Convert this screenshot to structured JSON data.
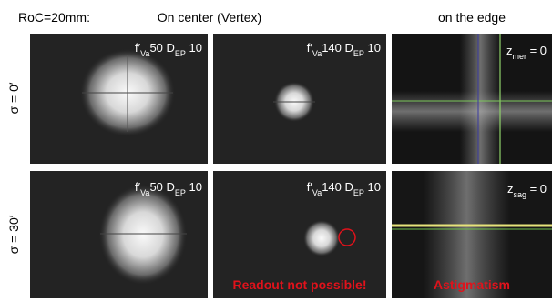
{
  "header": {
    "roc": "RoC=20mm:",
    "center": "On center (Vertex)",
    "edge": "on the edge"
  },
  "rows": [
    {
      "label": "σ = 0′",
      "panels": [
        {
          "label": [
            {
              "text": "f′"
            },
            {
              "text": "Va",
              "sub": true
            },
            {
              "text": "50 D"
            },
            {
              "text": "EP",
              "sub": true
            },
            {
              "text": " 10"
            }
          ]
        },
        {
          "label": [
            {
              "text": "f′"
            },
            {
              "text": "Va",
              "sub": true
            },
            {
              "text": "140 D"
            },
            {
              "text": "EP",
              "sub": true
            },
            {
              "text": " 10"
            }
          ]
        },
        {
          "label": [
            {
              "text": "z"
            },
            {
              "text": "mer",
              "sub": true
            },
            {
              "text": " = 0"
            }
          ]
        }
      ]
    },
    {
      "label": "σ = 30′",
      "panels": [
        {
          "label": [
            {
              "text": "f′"
            },
            {
              "text": "Va",
              "sub": true
            },
            {
              "text": "50 D"
            },
            {
              "text": "EP",
              "sub": true
            },
            {
              "text": " 10"
            }
          ]
        },
        {
          "label": [
            {
              "text": "f′"
            },
            {
              "text": "Va",
              "sub": true
            },
            {
              "text": "140 D"
            },
            {
              "text": "EP",
              "sub": true
            },
            {
              "text": " 10"
            }
          ],
          "note": "Readout not possible!"
        },
        {
          "label": [
            {
              "text": "z"
            },
            {
              "text": "sag",
              "sub": true
            },
            {
              "text": " = 0"
            }
          ],
          "note": "Astigmatism"
        }
      ]
    }
  ]
}
